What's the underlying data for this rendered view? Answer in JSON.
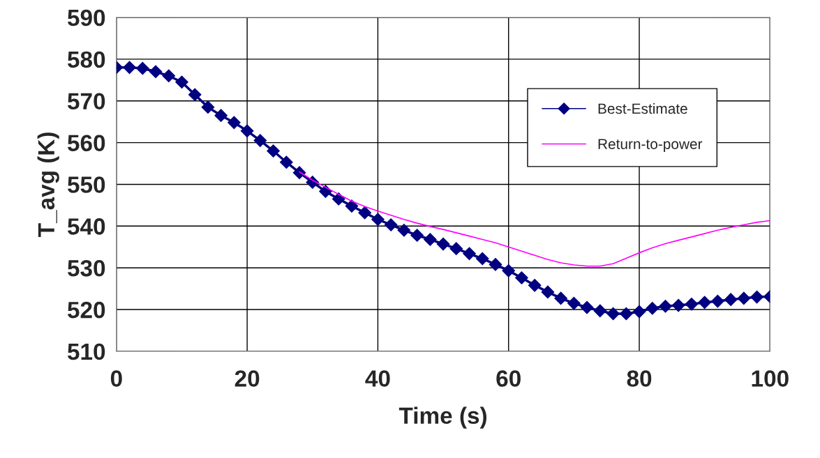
{
  "chart_data": {
    "type": "line",
    "xlabel": "Time (s)",
    "ylabel": "T_avg (K)",
    "xlim": [
      0,
      100
    ],
    "xticks": [
      0,
      20,
      40,
      60,
      80,
      100
    ],
    "ylim": [
      510,
      590
    ],
    "yticks": [
      510,
      520,
      530,
      540,
      550,
      560,
      570,
      580,
      590
    ],
    "grid": true,
    "legend": "right",
    "series": [
      {
        "name": "Best-Estimate",
        "color": "#000080",
        "marker": "diamond",
        "x": [
          0,
          2,
          4,
          6,
          8,
          10,
          12,
          14,
          16,
          18,
          20,
          22,
          24,
          26,
          28,
          30,
          32,
          34,
          36,
          38,
          40,
          42,
          44,
          46,
          48,
          50,
          52,
          54,
          56,
          58,
          60,
          62,
          64,
          66,
          68,
          70,
          72,
          74,
          76,
          78,
          80,
          82,
          84,
          86,
          88,
          90,
          92,
          94,
          96,
          98,
          100
        ],
        "values": [
          578,
          578,
          577.8,
          577,
          576,
          574.5,
          571.5,
          568.5,
          566.5,
          564.8,
          562.8,
          560.5,
          558,
          555.3,
          552.8,
          550.5,
          548.3,
          546.5,
          544.8,
          543.2,
          541.6,
          540.3,
          539,
          537.8,
          536.8,
          535.7,
          534.6,
          533.4,
          532.2,
          530.8,
          529.3,
          527.6,
          525.8,
          524.2,
          522.7,
          521.5,
          520.5,
          519.7,
          519,
          519,
          519.5,
          520.3,
          520.8,
          521,
          521.3,
          521.7,
          522,
          522.4,
          522.7,
          523,
          523.1
        ]
      },
      {
        "name": "Return-to-power",
        "color": "#ff00ff",
        "marker": "none",
        "x": [
          28,
          30,
          32,
          34,
          36,
          38,
          40,
          42,
          44,
          46,
          48,
          50,
          52,
          54,
          56,
          58,
          60,
          62,
          64,
          66,
          68,
          70,
          72,
          74,
          76,
          78,
          80,
          82,
          84,
          86,
          88,
          90,
          92,
          94,
          96,
          98,
          100
        ],
        "values": [
          553,
          551,
          549.3,
          547.6,
          546,
          544.7,
          543.6,
          542.6,
          541.6,
          540.7,
          539.9,
          539.2,
          538.4,
          537.6,
          536.8,
          536,
          535,
          534,
          533,
          532,
          531.2,
          530.7,
          530.4,
          530.4,
          531,
          532.3,
          533.6,
          534.8,
          535.8,
          536.6,
          537.4,
          538.2,
          539,
          539.7,
          540.3,
          540.9,
          541.3
        ]
      }
    ]
  }
}
